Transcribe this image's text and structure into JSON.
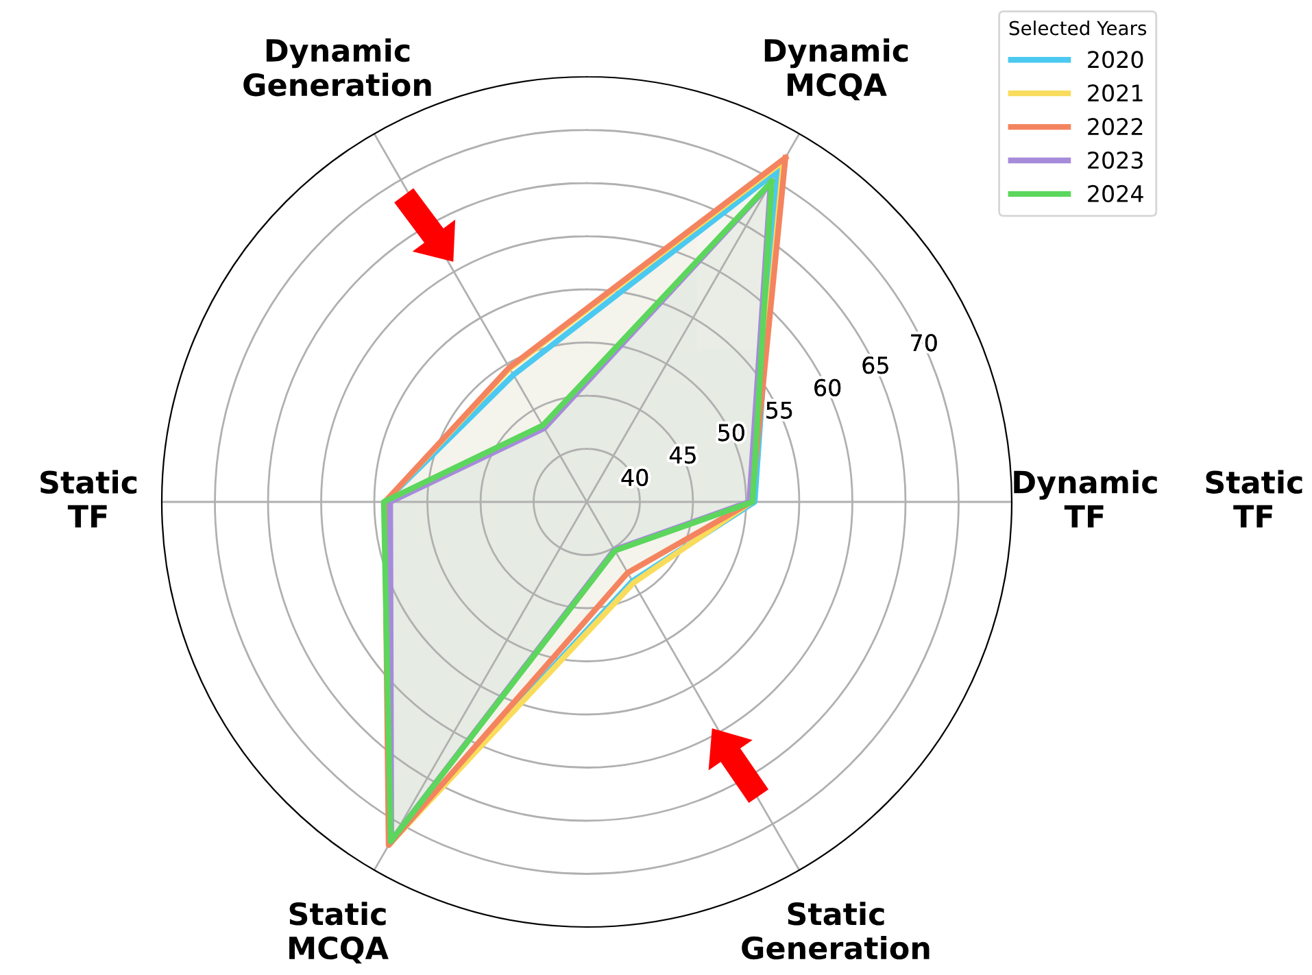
{
  "chart_data": {
    "type": "radar",
    "categories": [
      "Dynamic\nMCQA",
      "Dynamic\nTF",
      "Static\nGeneration",
      "Static\nMCQA",
      "Static\nTF",
      "Dynamic\nGeneration"
    ],
    "legend_title": "Selected Years",
    "legend": "top right",
    "grid": true,
    "line_style": "solid",
    "marker": "none",
    "ylim": [
      35,
      75
    ],
    "yticks": [
      40,
      45,
      50,
      55,
      60,
      65,
      70
    ],
    "annotations": [
      "Static\nTF"
    ],
    "series": [
      {
        "name": "2020",
        "color": "#4cc9f0",
        "values": [
          71.0,
          50.8,
          43.6,
          72.0,
          54.0,
          48.8
        ]
      },
      {
        "name": "2021",
        "color": "#f9dc5c",
        "values": [
          72.0,
          50.5,
          43.8,
          72.2,
          54.0,
          49.5
        ]
      },
      {
        "name": "2022",
        "color": "#f4845f",
        "values": [
          72.4,
          50.5,
          42.7,
          72.3,
          54.0,
          49.6
        ]
      },
      {
        "name": "2023",
        "color": "#a78bdb",
        "values": [
          69.6,
          50.3,
          40.2,
          71.8,
          53.5,
          43.0
        ]
      },
      {
        "name": "2024",
        "color": "#5cd65c",
        "values": [
          69.8,
          50.6,
          40.3,
          71.9,
          54.1,
          43.3
        ]
      }
    ]
  }
}
